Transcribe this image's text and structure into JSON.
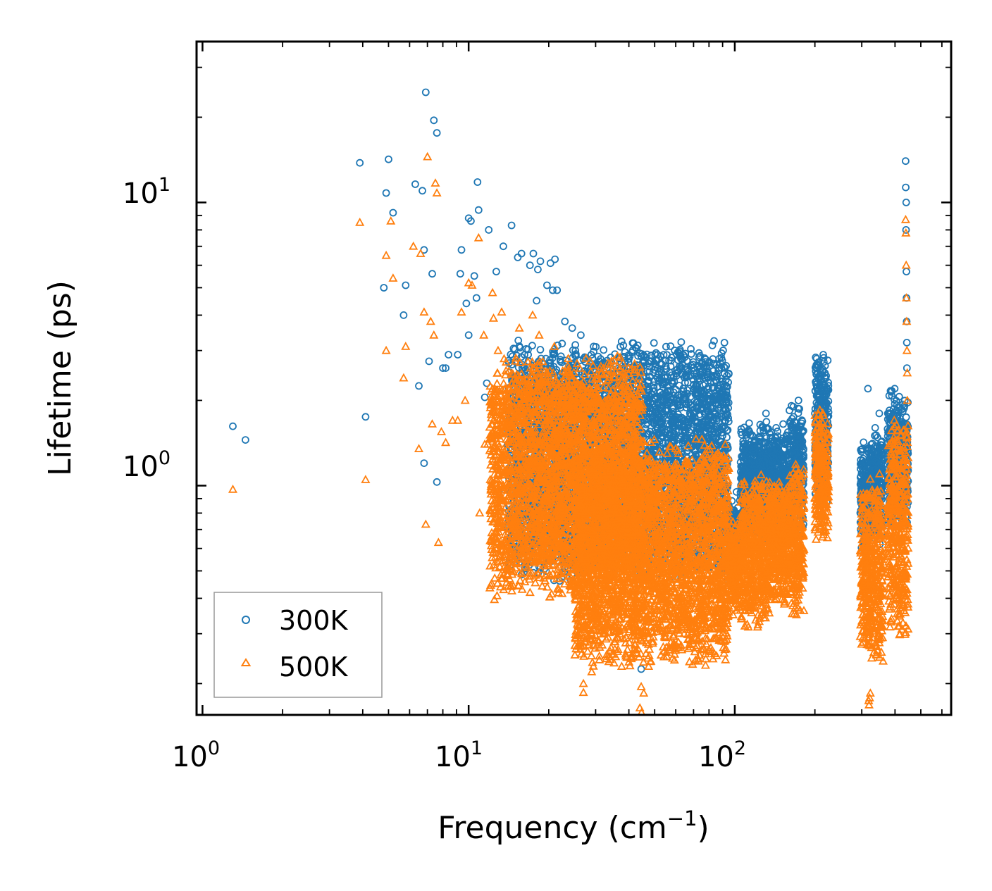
{
  "chart_data": {
    "type": "scatter",
    "xscale": "log",
    "yscale": "log",
    "xlim": [
      0.95,
      650
    ],
    "ylim": [
      0.155,
      37
    ],
    "xlabel": {
      "base": "Frequency (cm",
      "sup": "−1",
      "tail": ")"
    },
    "ylabel": "Lifetime (ps)",
    "x_ticks": [
      {
        "value": 1,
        "base": "10",
        "exp": "0"
      },
      {
        "value": 10,
        "base": "10",
        "exp": "1"
      },
      {
        "value": 100,
        "base": "10",
        "exp": "2"
      }
    ],
    "y_ticks": [
      {
        "value": 1,
        "base": "10",
        "exp": "0"
      },
      {
        "value": 10,
        "base": "10",
        "exp": "1"
      }
    ],
    "legend": {
      "position": "lower-left",
      "entries": [
        "300K",
        "500K"
      ]
    },
    "series": [
      {
        "name": "300K",
        "marker": "circle",
        "color": "#1f77b4",
        "points": [
          [
            1.3,
            1.62
          ],
          [
            3.9,
            13.8
          ],
          [
            4.1,
            1.75
          ],
          [
            4.8,
            5.0
          ],
          [
            4.9,
            10.8
          ],
          [
            5.0,
            14.2
          ],
          [
            5.2,
            9.2
          ],
          [
            5.7,
            4.0
          ],
          [
            5.8,
            5.1
          ],
          [
            6.3,
            11.6
          ],
          [
            6.5,
            2.25
          ],
          [
            6.7,
            11.0
          ],
          [
            6.8,
            6.8
          ],
          [
            6.8,
            1.2
          ],
          [
            6.9,
            24.5
          ],
          [
            7.1,
            2.75
          ],
          [
            7.3,
            5.6
          ],
          [
            7.4,
            19.5
          ],
          [
            7.6,
            17.6
          ],
          [
            7.6,
            1.03
          ],
          [
            8.0,
            2.6
          ],
          [
            8.2,
            2.6
          ],
          [
            8.4,
            2.9
          ],
          [
            9.1,
            2.9
          ],
          [
            9.3,
            5.6
          ],
          [
            9.4,
            6.8
          ],
          [
            9.8,
            4.4
          ],
          [
            10.0,
            8.8
          ],
          [
            10.0,
            3.4
          ],
          [
            10.2,
            8.6
          ],
          [
            10.5,
            5.5
          ],
          [
            10.7,
            4.6
          ],
          [
            10.8,
            11.8
          ],
          [
            10.9,
            9.4
          ],
          [
            11.5,
            2.05
          ],
          [
            11.7,
            2.3
          ],
          [
            11.9,
            8.0
          ],
          [
            12.7,
            5.7
          ],
          [
            13.5,
            7.0
          ],
          [
            14.5,
            8.3
          ],
          [
            15.3,
            6.4
          ],
          [
            15.8,
            6.6
          ],
          [
            17.0,
            6.0
          ],
          [
            17.5,
            6.6
          ],
          [
            18.2,
            5.8
          ],
          [
            18.6,
            6.2
          ],
          [
            19.7,
            5.1
          ],
          [
            20.3,
            6.1
          ],
          [
            20.7,
            4.9
          ],
          [
            21.1,
            6.3
          ],
          [
            21.5,
            4.9
          ],
          [
            18.0,
            4.5
          ],
          [
            23.0,
            3.8
          ],
          [
            24.5,
            3.6
          ],
          [
            26.4,
            3.4
          ],
          [
            29.5,
            3.1
          ],
          [
            31.3,
            2.8
          ],
          [
            34.0,
            2.5
          ],
          [
            36.8,
            2.2
          ],
          [
            41.5,
            1.85
          ],
          [
            47.5,
            1.8
          ],
          [
            53.0,
            1.6
          ],
          [
            61.5,
            1.55
          ],
          [
            66.5,
            1.6
          ],
          [
            73.8,
            1.55
          ],
          [
            80.0,
            1.4
          ],
          [
            94.0,
            1.0
          ],
          [
            101.5,
            0.95
          ],
          [
            107.0,
            1.05
          ],
          [
            113.5,
            1.55
          ],
          [
            131.0,
            1.8
          ],
          [
            143.0,
            1.6
          ],
          [
            152.0,
            1.65
          ],
          [
            165.0,
            1.5
          ],
          [
            173.5,
            2.0
          ],
          [
            200.0,
            1.8
          ],
          [
            215.0,
            2.9
          ],
          [
            218.0,
            2.5
          ],
          [
            302.0,
            1.35
          ],
          [
            316.5,
            2.2
          ],
          [
            337.0,
            1.6
          ],
          [
            349.0,
            1.8
          ],
          [
            376.0,
            1.8
          ],
          [
            399.0,
            2.2
          ],
          [
            438.5,
            14.0
          ],
          [
            439.0,
            11.3
          ],
          [
            440.5,
            10.0
          ],
          [
            440.0,
            8.0
          ],
          [
            441.5,
            5.7
          ],
          [
            442.0,
            4.6
          ],
          [
            442.5,
            3.8
          ],
          [
            443.0,
            3.2
          ],
          [
            443.5,
            2.6
          ],
          [
            1.45,
            1.45
          ],
          [
            13.0,
            0.95
          ],
          [
            14.0,
            1.4
          ],
          [
            17.3,
            1.15
          ],
          [
            44.5,
            0.225
          ],
          [
            38.0,
            0.36
          ],
          [
            30.0,
            0.35
          ]
        ],
        "bands": [
          {
            "x": [
              14,
              95
            ],
            "y": [
              2.7,
              0.55
            ]
          },
          {
            "x": [
              95,
              105
            ],
            "y": [
              0.75,
              0.55
            ]
          },
          {
            "x": [
              105,
              135
            ],
            "y": [
              1.4,
              0.75
            ]
          },
          {
            "x": [
              135,
              160
            ],
            "y": [
              1.3,
              0.75
            ]
          },
          {
            "x": [
              160,
              182
            ],
            "y": [
              1.6,
              0.8
            ]
          },
          {
            "x": [
              200,
              225
            ],
            "y": [
              2.5,
              1.05
            ]
          },
          {
            "x": [
              296,
              318
            ],
            "y": [
              1.2,
              0.7
            ]
          },
          {
            "x": [
              318,
              360
            ],
            "y": [
              1.3,
              0.75
            ]
          },
          {
            "x": [
              375,
              448
            ],
            "y": [
              1.8,
              0.85
            ]
          }
        ]
      },
      {
        "name": "500K",
        "marker": "triangle",
        "color": "#ff7f0e",
        "points": [
          [
            1.3,
            0.97
          ],
          [
            3.9,
            8.5
          ],
          [
            4.1,
            1.05
          ],
          [
            4.9,
            3.0
          ],
          [
            4.9,
            6.5
          ],
          [
            5.1,
            8.6
          ],
          [
            5.2,
            5.4
          ],
          [
            5.7,
            2.4
          ],
          [
            5.8,
            3.1
          ],
          [
            6.2,
            7.0
          ],
          [
            6.5,
            1.35
          ],
          [
            6.6,
            6.6
          ],
          [
            6.8,
            4.1
          ],
          [
            6.9,
            0.73
          ],
          [
            7.0,
            14.5
          ],
          [
            7.2,
            3.8
          ],
          [
            7.3,
            1.65
          ],
          [
            7.4,
            3.4
          ],
          [
            7.5,
            11.7
          ],
          [
            7.6,
            10.8
          ],
          [
            7.7,
            0.63
          ],
          [
            7.9,
            1.55
          ],
          [
            8.2,
            1.42
          ],
          [
            8.7,
            1.7
          ],
          [
            9.1,
            1.7
          ],
          [
            9.4,
            4.1
          ],
          [
            9.7,
            2.0
          ],
          [
            10.0,
            5.2
          ],
          [
            10.3,
            5.1
          ],
          [
            10.9,
            7.5
          ],
          [
            11.4,
            3.4
          ],
          [
            11.5,
            1.4
          ],
          [
            12.3,
            4.8
          ],
          [
            12.4,
            3.9
          ],
          [
            12.9,
            3.0
          ],
          [
            13.3,
            4.1
          ],
          [
            13.7,
            2.2
          ],
          [
            15.5,
            3.6
          ],
          [
            17.4,
            4.0
          ],
          [
            18.4,
            3.4
          ],
          [
            21.0,
            3.1
          ],
          [
            11.0,
            0.8
          ],
          [
            11.8,
            1.4
          ],
          [
            13.3,
            0.97
          ],
          [
            18.2,
            0.75
          ],
          [
            19.5,
            0.55
          ],
          [
            21.8,
            0.43
          ],
          [
            25.6,
            0.35
          ],
          [
            26.3,
            0.29
          ],
          [
            27.5,
            0.28
          ],
          [
            28.0,
            0.26
          ],
          [
            31.0,
            0.25
          ],
          [
            37.6,
            0.23
          ],
          [
            27.0,
            0.2
          ],
          [
            27.0,
            0.186
          ],
          [
            44.5,
            0.195
          ],
          [
            45.5,
            0.185
          ],
          [
            44.0,
            0.164
          ],
          [
            44.6,
            0.158
          ],
          [
            29.0,
            0.22
          ],
          [
            34.0,
            0.26
          ],
          [
            39.0,
            0.25
          ],
          [
            22.7,
            0.56
          ],
          [
            43.0,
            0.86
          ],
          [
            50.5,
            0.83
          ],
          [
            57.0,
            0.95
          ],
          [
            63.0,
            0.98
          ],
          [
            68.0,
            0.97
          ],
          [
            75.0,
            0.8
          ],
          [
            80.0,
            0.84
          ],
          [
            93.0,
            0.57
          ],
          [
            101.0,
            0.45
          ],
          [
            103.0,
            0.38
          ],
          [
            115.0,
            0.9
          ],
          [
            130.0,
            0.86
          ],
          [
            151.0,
            0.88
          ],
          [
            152.0,
            0.53
          ],
          [
            172.5,
            1.1
          ],
          [
            200.0,
            0.9
          ],
          [
            216.5,
            1.6
          ],
          [
            312.0,
            0.58
          ],
          [
            318.5,
            0.174
          ],
          [
            319.5,
            0.168
          ],
          [
            321.0,
            0.178
          ],
          [
            323.0,
            0.185
          ],
          [
            340.0,
            0.95
          ],
          [
            350.0,
            1.1
          ],
          [
            361.0,
            0.24
          ],
          [
            381.0,
            1.4
          ],
          [
            389.0,
            0.82
          ],
          [
            401.5,
            1.45
          ],
          [
            417.0,
            0.92
          ],
          [
            420.0,
            1.5
          ],
          [
            438.5,
            8.7
          ],
          [
            439.5,
            7.8
          ],
          [
            440.5,
            6.0
          ],
          [
            441.5,
            4.6
          ],
          [
            442.5,
            3.8
          ],
          [
            443.5,
            3.0
          ],
          [
            444.5,
            2.5
          ],
          [
            445.0,
            2.0
          ],
          [
            47.5,
            0.3
          ],
          [
            57.0,
            0.32
          ],
          [
            64.5,
            0.3
          ],
          [
            73.0,
            0.24
          ],
          [
            80.0,
            0.26
          ]
        ],
        "bands": [
          {
            "x": [
              12,
              45
            ],
            "y": [
              2.4,
              0.48
            ]
          },
          {
            "x": [
              25,
              95
            ],
            "y": [
              1.2,
              0.28
            ]
          },
          {
            "x": [
              95,
              105
            ],
            "y": [
              0.62,
              0.42
            ]
          },
          {
            "x": [
              105,
              135
            ],
            "y": [
              0.9,
              0.38
            ]
          },
          {
            "x": [
              135,
              160
            ],
            "y": [
              0.88,
              0.45
            ]
          },
          {
            "x": [
              160,
              182
            ],
            "y": [
              1.0,
              0.42
            ]
          },
          {
            "x": [
              200,
              225
            ],
            "y": [
              1.55,
              0.75
            ]
          },
          {
            "x": [
              296,
              318
            ],
            "y": [
              0.85,
              0.3
            ]
          },
          {
            "x": [
              318,
              360
            ],
            "y": [
              0.9,
              0.28
            ]
          },
          {
            "x": [
              375,
              448
            ],
            "y": [
              1.5,
              0.34
            ]
          }
        ]
      }
    ]
  }
}
